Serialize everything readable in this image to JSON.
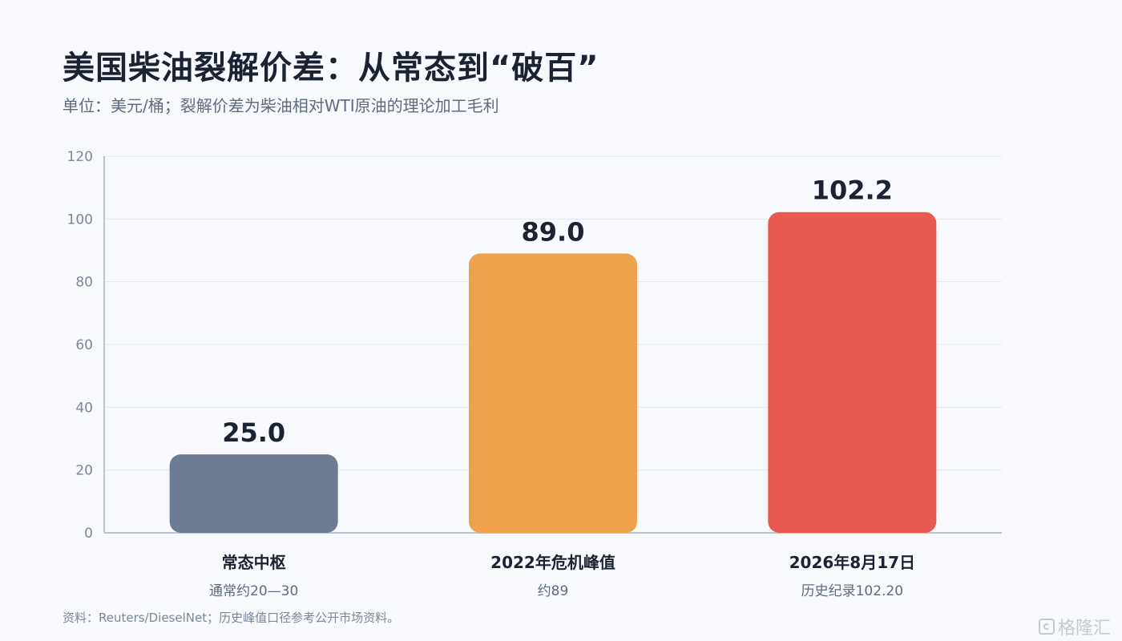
{
  "title": "美国柴油裂解价差：从常态到“破百”",
  "subtitle": "单位：美元/桶；裂解价差为柴油相对WTI原油的理论加工毛利",
  "source": "资料：Reuters/DieselNet；历史峰值口径参考公开市场资料。",
  "watermark": "格隆汇",
  "chart_data": {
    "type": "bar",
    "title": "美国柴油裂解价差：从常态到“破百”",
    "ylabel": "",
    "xlabel": "",
    "ylim": [
      0,
      120
    ],
    "yticks": [
      0,
      20,
      40,
      60,
      80,
      100,
      120
    ],
    "grid": true,
    "categories": [
      "常态中枢",
      "2022年危机峰值",
      "2026年8月17日"
    ],
    "category_notes": [
      "通常约20—30",
      "约89",
      "历史纪录102.20"
    ],
    "values": [
      25.0,
      89.0,
      102.2
    ],
    "value_labels": [
      "25.0",
      "89.0",
      "102.2"
    ],
    "colors": [
      "#6d7b93",
      "#efa14c",
      "#e8594f"
    ]
  }
}
